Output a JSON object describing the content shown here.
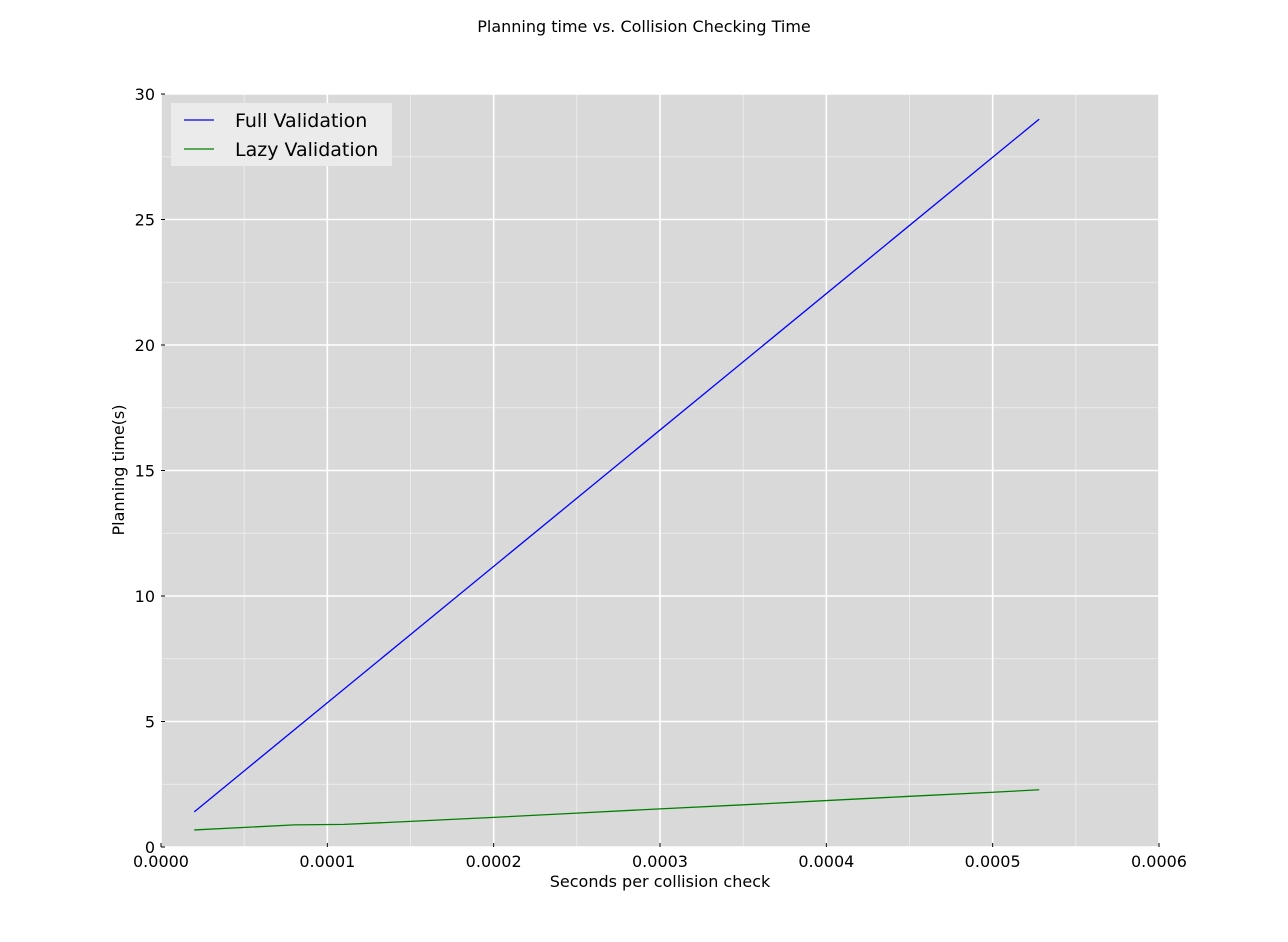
{
  "chart_data": {
    "type": "line",
    "title": "Planning time vs. Collision Checking Time",
    "xlabel": "Seconds per collision check",
    "ylabel": "Planning time(s)",
    "xlim": [
      0,
      0.0006
    ],
    "ylim": [
      0,
      30
    ],
    "x_ticks": [
      0,
      0.0001,
      0.0002,
      0.0003,
      0.0004,
      0.0005,
      0.0006
    ],
    "x_tick_labels": [
      "0.0000",
      "0.0001",
      "0.0002",
      "0.0003",
      "0.0004",
      "0.0005",
      "0.0006"
    ],
    "y_ticks": [
      0,
      5,
      10,
      15,
      20,
      25,
      30
    ],
    "y_tick_labels": [
      "0",
      "5",
      "10",
      "15",
      "20",
      "25",
      "30"
    ],
    "grid": true,
    "background": "#d9d9d9",
    "grid_color": "#ffffff",
    "legend_position": "top-left",
    "series": [
      {
        "name": "Full Validation",
        "color": "#0000ff",
        "x": [
          2e-05,
          0.000528
        ],
        "y": [
          1.4,
          29.0
        ]
      },
      {
        "name": "Lazy Validation",
        "color": "#008000",
        "x": [
          2e-05,
          8e-05,
          0.00011,
          0.00015,
          0.0002,
          0.00025,
          0.0003,
          0.00035,
          0.0004,
          0.00045,
          0.0005,
          0.000528
        ],
        "y": [
          0.68,
          0.88,
          0.9,
          1.02,
          1.18,
          1.35,
          1.52,
          1.68,
          1.85,
          2.02,
          2.18,
          2.28
        ]
      }
    ]
  }
}
